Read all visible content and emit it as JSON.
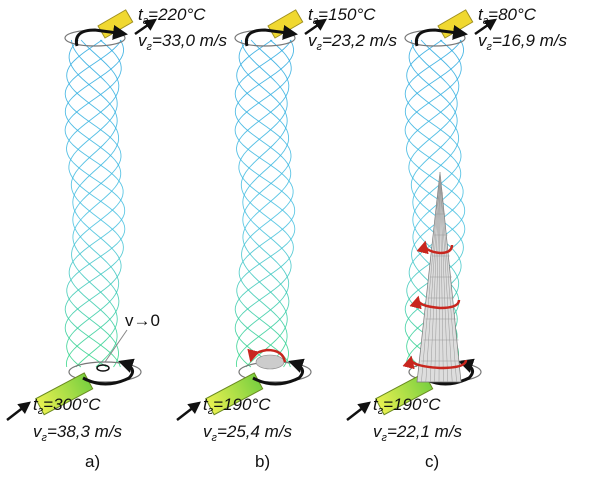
{
  "panels": [
    {
      "caption": "a)",
      "outlet": {
        "temperature": {
          "symbol": "t",
          "sub": "г",
          "text": "=220°C"
        },
        "velocity": {
          "symbol": "v",
          "sub": "г",
          "text": "=33,0 m/s"
        }
      },
      "inlet": {
        "temperature": {
          "symbol": "t",
          "sub": "г",
          "text": "=300°C"
        },
        "velocity": {
          "symbol": "v",
          "sub": "г",
          "text": "=38,3 m/s"
        }
      },
      "annotation": "v→0"
    },
    {
      "caption": "b)",
      "outlet": {
        "temperature": {
          "symbol": "t",
          "sub": "г",
          "text": "=150°C"
        },
        "velocity": {
          "symbol": "v",
          "sub": "г",
          "text": "=23,2 m/s"
        }
      },
      "inlet": {
        "temperature": {
          "symbol": "t",
          "sub": "г",
          "text": "=190°C"
        },
        "velocity": {
          "symbol": "v",
          "sub": "г",
          "text": "=25,4 m/s"
        }
      }
    },
    {
      "caption": "c)",
      "outlet": {
        "temperature": {
          "symbol": "t",
          "sub": "г",
          "text": "=80°C"
        },
        "velocity": {
          "symbol": "v",
          "sub": "г",
          "text": "=16,9 m/s"
        }
      },
      "inlet": {
        "temperature": {
          "symbol": "t",
          "sub": "г",
          "text": "=190°C"
        },
        "velocity": {
          "symbol": "v",
          "sub": "г",
          "text": "=22,1 m/s"
        }
      }
    }
  ]
}
